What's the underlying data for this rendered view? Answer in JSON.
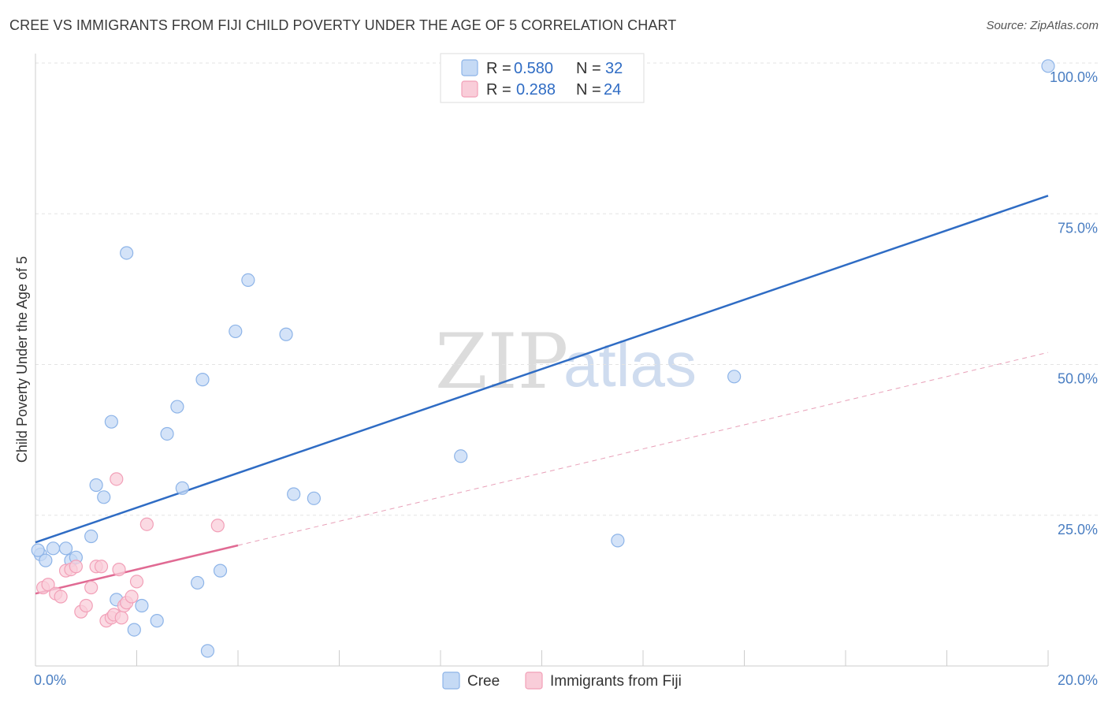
{
  "header": {
    "title": "CREE VS IMMIGRANTS FROM FIJI CHILD POVERTY UNDER THE AGE OF 5 CORRELATION CHART",
    "source": "Source: ZipAtlas.com"
  },
  "watermark": {
    "zip": "ZIP",
    "atlas": "atlas"
  },
  "legend": {
    "r_label": "R =",
    "n_label": "N =",
    "items": [
      {
        "name": "Cree",
        "r": "0.580",
        "n": "32",
        "color": "#8db4e8",
        "fill": "#c5daf5"
      },
      {
        "name": "Immigrants from Fiji",
        "r": "0.288",
        "n": "24",
        "color": "#f2a0b8",
        "fill": "#f9cdd9"
      }
    ]
  },
  "chart_data": {
    "type": "scatter",
    "title": "CREE VS IMMIGRANTS FROM FIJI CHILD POVERTY UNDER THE AGE OF 5 CORRELATION CHART",
    "xlabel": "",
    "ylabel": "Child Poverty Under the Age of 5",
    "xlim": [
      0,
      20
    ],
    "ylim": [
      0,
      100
    ],
    "x_tick_labels": [
      "0.0%",
      "20.0%"
    ],
    "y_ticks": [
      25,
      50,
      75,
      100
    ],
    "y_tick_labels": [
      "25.0%",
      "50.0%",
      "75.0%",
      "100.0%"
    ],
    "grid": "horizontal dashed",
    "legend_position": "top-center",
    "series": [
      {
        "name": "Cree",
        "color": "#8db4e8",
        "fill": "#c5daf5",
        "trend": {
          "x": [
            0,
            20
          ],
          "y": [
            20.5,
            78.0
          ],
          "color": "#2f6cc4",
          "style": "solid"
        },
        "points": [
          [
            0.1,
            18.5
          ],
          [
            0.2,
            17.5
          ],
          [
            0.35,
            19.5
          ],
          [
            0.6,
            19.5
          ],
          [
            0.7,
            17.5
          ],
          [
            0.8,
            18.0
          ],
          [
            1.1,
            21.5
          ],
          [
            1.2,
            30.0
          ],
          [
            1.35,
            28.0
          ],
          [
            1.5,
            40.5
          ],
          [
            1.6,
            11.0
          ],
          [
            1.8,
            68.5
          ],
          [
            1.95,
            6.0
          ],
          [
            2.1,
            10.0
          ],
          [
            2.4,
            7.5
          ],
          [
            2.6,
            38.5
          ],
          [
            2.8,
            43.0
          ],
          [
            2.9,
            29.5
          ],
          [
            3.2,
            13.8
          ],
          [
            3.3,
            47.5
          ],
          [
            3.4,
            2.5
          ],
          [
            3.65,
            15.8
          ],
          [
            3.95,
            55.5
          ],
          [
            4.2,
            64.0
          ],
          [
            4.95,
            55.0
          ],
          [
            5.1,
            28.5
          ],
          [
            5.5,
            27.8
          ],
          [
            8.4,
            34.8
          ],
          [
            11.5,
            20.8
          ],
          [
            13.8,
            48.0
          ],
          [
            20.0,
            99.5
          ],
          [
            0.05,
            19.2
          ]
        ]
      },
      {
        "name": "Immigrants from Fiji",
        "color": "#f2a0b8",
        "fill": "#f9cdd9",
        "trend": {
          "x": [
            0,
            4.0
          ],
          "y": [
            12.0,
            20.0
          ],
          "color": "#e06a93",
          "style": "solid"
        },
        "trend_extension": {
          "x": [
            4.0,
            20.0
          ],
          "y": [
            20.0,
            52.0
          ],
          "color": "#e8a0b8",
          "style": "dashed"
        },
        "points": [
          [
            0.15,
            13.0
          ],
          [
            0.25,
            13.5
          ],
          [
            0.4,
            12.0
          ],
          [
            0.5,
            11.5
          ],
          [
            0.6,
            15.8
          ],
          [
            0.7,
            16.0
          ],
          [
            0.8,
            16.5
          ],
          [
            0.9,
            9.0
          ],
          [
            1.0,
            10.0
          ],
          [
            1.1,
            13.0
          ],
          [
            1.2,
            16.5
          ],
          [
            1.3,
            16.5
          ],
          [
            1.4,
            7.5
          ],
          [
            1.5,
            8.0
          ],
          [
            1.55,
            8.5
          ],
          [
            1.6,
            31.0
          ],
          [
            1.65,
            16.0
          ],
          [
            1.7,
            8.0
          ],
          [
            1.75,
            10.0
          ],
          [
            1.8,
            10.5
          ],
          [
            1.9,
            11.5
          ],
          [
            2.0,
            14.0
          ],
          [
            2.2,
            23.5
          ],
          [
            3.6,
            23.3
          ]
        ]
      }
    ]
  }
}
